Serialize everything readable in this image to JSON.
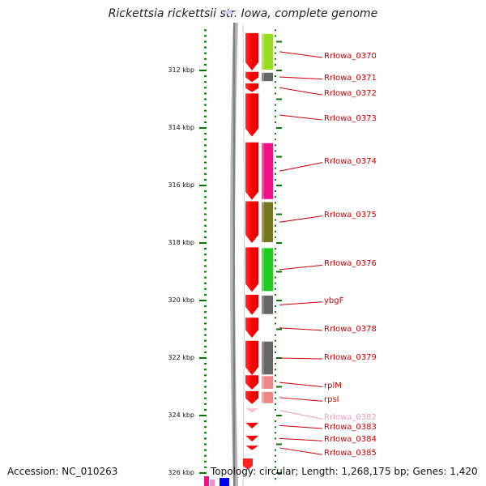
{
  "title": "Rickettsia rickettsii str. Iowa, complete genome",
  "footer": {
    "accession": "Accession: NC_010263",
    "summary": "Topology: circular; Length: 1,268,175 bp; Genes: 1,420"
  },
  "axis": {
    "unit": "kbp",
    "range_kbp": [
      310.6,
      326.2
    ],
    "major_ticks": [
      {
        "value": 312,
        "label": "312 kbp"
      },
      {
        "value": 314,
        "label": "314 kbp"
      },
      {
        "value": 316,
        "label": "316 kbp"
      },
      {
        "value": 318,
        "label": "318 kbp"
      },
      {
        "value": 320,
        "label": "320 kbp"
      },
      {
        "value": 322,
        "label": "322 kbp"
      },
      {
        "value": 324,
        "label": "324 kbp"
      },
      {
        "value": 326,
        "label": "326 kbp"
      }
    ]
  },
  "colors": {
    "cds": "#ff0000",
    "tick_green": "#007700",
    "line_red": "#cc0000",
    "backbone": "#888888"
  },
  "genes": [
    {
      "label": "RrIowa_0370",
      "start": 310.7,
      "end": 312.0,
      "cog_color": "#99dd22",
      "label_y_kbp": 311.55
    },
    {
      "label": "RrIowa_0371",
      "start": 312.05,
      "end": 312.4,
      "cog_color": "#666666",
      "label_y_kbp": 312.3
    },
    {
      "label": "RrIowa_0372",
      "start": 312.45,
      "end": 312.75,
      "cog_color": null,
      "label_y_kbp": 312.85
    },
    {
      "label": "RrIowa_0373",
      "start": 312.8,
      "end": 314.3,
      "cog_color": null,
      "label_y_kbp": 313.72
    },
    {
      "label": "RrIowa_0374",
      "start": 314.5,
      "end": 316.5,
      "cog_color": "#ee1188",
      "label_y_kbp": 315.2
    },
    {
      "label": "RrIowa_0375",
      "start": 316.55,
      "end": 318.0,
      "cog_color": "#777722",
      "label_y_kbp": 317.06
    },
    {
      "label": "RrIowa_0376",
      "start": 318.15,
      "end": 319.7,
      "cog_color": "#22cc22",
      "label_y_kbp": 318.77
    },
    {
      "label": "ybgF",
      "start": 319.8,
      "end": 320.5,
      "cog_color": "#666666",
      "label_y_kbp": 320.05
    },
    {
      "label": "RrIowa_0378",
      "start": 320.6,
      "end": 321.3,
      "cog_color": null,
      "label_y_kbp": 321.04
    },
    {
      "label": "RrIowa_0379",
      "start": 321.4,
      "end": 322.6,
      "cog_color": "#666666",
      "label_y_kbp": 322.03
    },
    {
      "label": "rplM",
      "start": 322.6,
      "end": 323.1,
      "cog_color": "#ee8888",
      "label_y_kbp": 323.0
    },
    {
      "label": "rpsI",
      "start": 323.15,
      "end": 323.6,
      "cog_color": "#ee8888",
      "label_y_kbp": 323.5
    },
    {
      "label": "RrIowa_0382",
      "start": 323.75,
      "end": 323.9,
      "cog_color": null,
      "label_y_kbp": 324.12,
      "faded": true
    },
    {
      "label": "RrIowa_0383",
      "start": 324.25,
      "end": 324.45,
      "cog_color": null,
      "label_y_kbp": 324.45
    },
    {
      "label": "RrIowa_0384",
      "start": 324.7,
      "end": 324.9,
      "cog_color": null,
      "label_y_kbp": 324.88
    },
    {
      "label": "RrIowa_0385",
      "start": 325.05,
      "end": 325.2,
      "cog_color": null,
      "label_y_kbp": 325.36
    }
  ]
}
